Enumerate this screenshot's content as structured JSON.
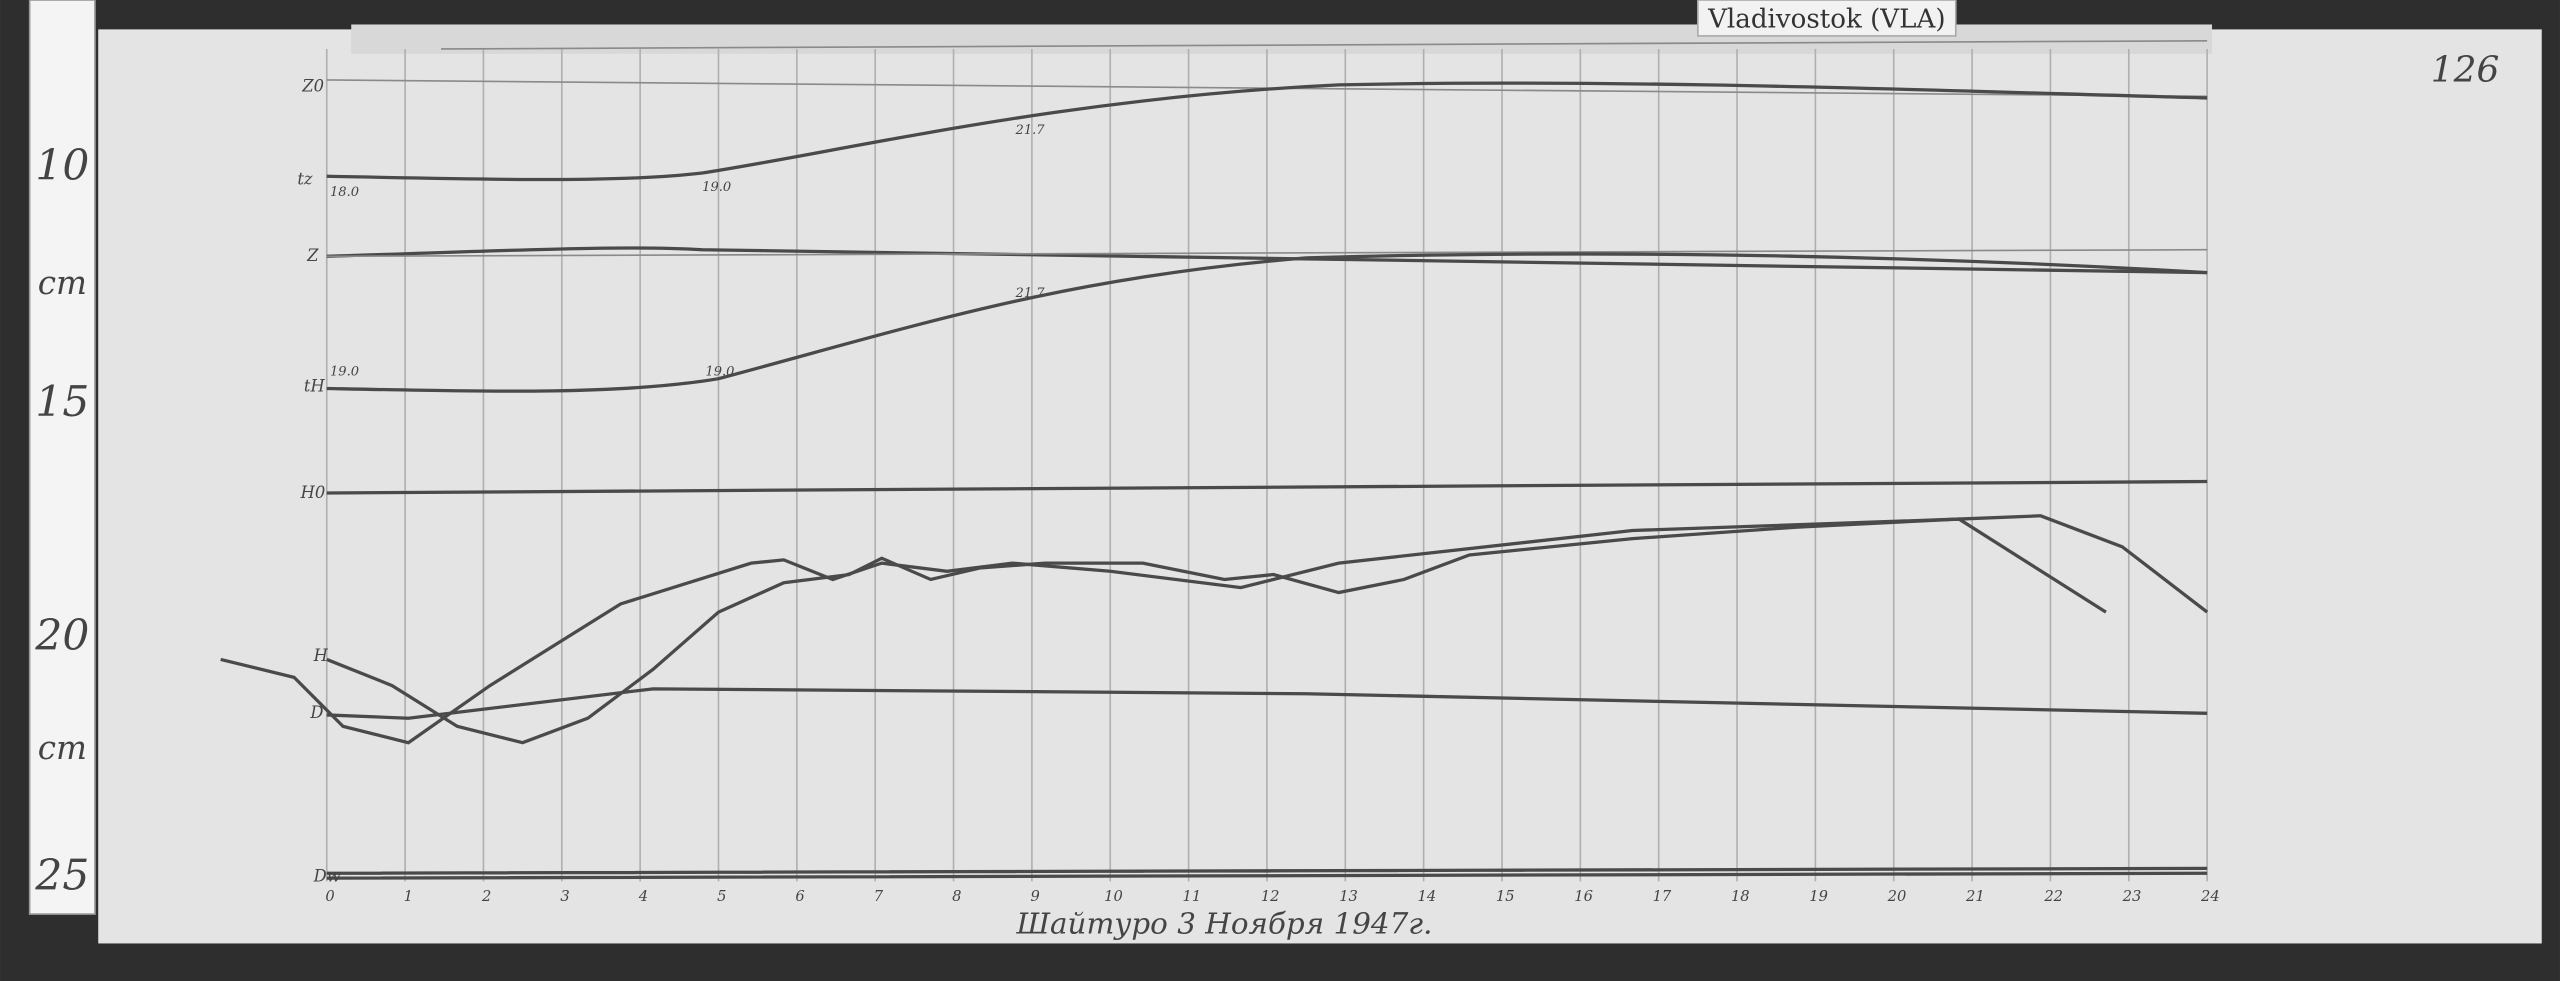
{
  "header": {
    "station": "Vladivostok (VLA)",
    "sheet_number": "126"
  },
  "ruler": {
    "labels": [
      "10",
      "cm",
      "15",
      "20",
      "cm",
      "25"
    ]
  },
  "trace_labels": [
    "Z0",
    "tz",
    "Z",
    "tH",
    "H0",
    "H",
    "D",
    "Dw"
  ],
  "temperature_marks": [
    "18.0",
    "19.0",
    "21.7",
    "19.0",
    "19.0",
    "21.7"
  ],
  "hour_labels": [
    "0",
    "1",
    "2",
    "3",
    "4",
    "5",
    "6",
    "7",
    "8",
    "9",
    "10",
    "11",
    "12",
    "13",
    "14",
    "15",
    "16",
    "17",
    "18",
    "19",
    "20",
    "21",
    "22",
    "23",
    "24"
  ],
  "caption": "Шайтуро 3 Ноября 1947г."
}
